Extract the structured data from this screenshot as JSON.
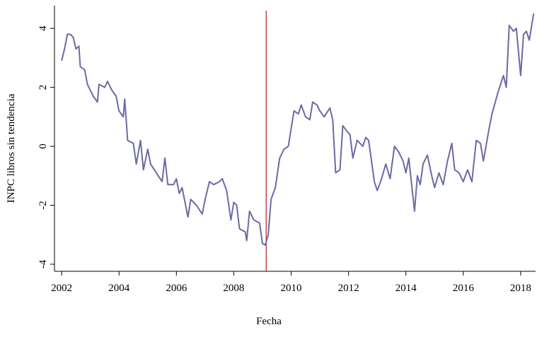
{
  "chart_data": {
    "type": "line",
    "xlabel": "Fecha",
    "ylabel": "INPC libros sin tendencia",
    "color": "#6b6aa6",
    "vline_x": 2009.13,
    "vline_color": "#b22222",
    "xlim": [
      2001.75,
      2018.52
    ],
    "ylim": [
      -4.24,
      4.77
    ],
    "xticks": [
      2002,
      2004,
      2006,
      2008,
      2010,
      2012,
      2014,
      2016,
      2018
    ],
    "yticks": [
      -4,
      -2,
      0,
      2,
      4
    ],
    "x": [
      2002.0,
      2002.1,
      2002.2,
      2002.3,
      2002.4,
      2002.5,
      2002.6,
      2002.65,
      2002.8,
      2002.9,
      2003.0,
      2003.1,
      2003.25,
      2003.3,
      2003.5,
      2003.6,
      2003.75,
      2003.9,
      2004.0,
      2004.15,
      2004.2,
      2004.3,
      2004.5,
      2004.6,
      2004.75,
      2004.85,
      2005.0,
      2005.1,
      2005.3,
      2005.5,
      2005.6,
      2005.7,
      2005.9,
      2006.0,
      2006.1,
      2006.2,
      2006.4,
      2006.5,
      2006.7,
      2006.9,
      2007.0,
      2007.15,
      2007.3,
      2007.5,
      2007.6,
      2007.75,
      2007.9,
      2008.0,
      2008.1,
      2008.2,
      2008.4,
      2008.45,
      2008.55,
      2008.7,
      2008.9,
      2009.0,
      2009.1,
      2009.2,
      2009.3,
      2009.45,
      2009.6,
      2009.75,
      2009.9,
      2010.0,
      2010.1,
      2010.25,
      2010.35,
      2010.5,
      2010.65,
      2010.75,
      2010.9,
      2011.0,
      2011.15,
      2011.35,
      2011.45,
      2011.55,
      2011.7,
      2011.8,
      2011.95,
      2012.05,
      2012.15,
      2012.3,
      2012.5,
      2012.6,
      2012.7,
      2012.8,
      2012.9,
      2013.0,
      2013.15,
      2013.3,
      2013.45,
      2013.6,
      2013.75,
      2013.9,
      2014.0,
      2014.1,
      2014.3,
      2014.4,
      2014.5,
      2014.6,
      2014.75,
      2014.9,
      2015.0,
      2015.15,
      2015.3,
      2015.45,
      2015.6,
      2015.7,
      2015.85,
      2016.0,
      2016.15,
      2016.3,
      2016.45,
      2016.6,
      2016.7,
      2016.9,
      2017.0,
      2017.2,
      2017.4,
      2017.5,
      2017.6,
      2017.75,
      2017.85,
      2018.0,
      2018.1,
      2018.2,
      2018.3,
      2018.45
    ],
    "values": [
      2.9,
      3.3,
      3.8,
      3.8,
      3.7,
      3.3,
      3.4,
      2.7,
      2.6,
      2.1,
      1.9,
      1.7,
      1.5,
      2.1,
      2.0,
      2.2,
      1.9,
      1.7,
      1.2,
      1.0,
      1.6,
      0.2,
      0.1,
      -0.6,
      0.2,
      -0.8,
      -0.1,
      -0.6,
      -0.9,
      -1.2,
      -0.4,
      -1.3,
      -1.3,
      -1.1,
      -1.6,
      -1.4,
      -2.4,
      -1.8,
      -2.0,
      -2.3,
      -1.8,
      -1.2,
      -1.3,
      -1.2,
      -1.1,
      -1.5,
      -2.5,
      -1.9,
      -2.0,
      -2.8,
      -2.9,
      -3.2,
      -2.2,
      -2.5,
      -2.6,
      -3.3,
      -3.35,
      -3.0,
      -1.8,
      -1.4,
      -0.4,
      -0.1,
      0.0,
      0.6,
      1.2,
      1.1,
      1.4,
      1.0,
      0.9,
      1.5,
      1.4,
      1.2,
      1.0,
      1.3,
      0.9,
      -0.9,
      -0.8,
      0.7,
      0.5,
      0.4,
      -0.4,
      0.2,
      0.0,
      0.3,
      0.2,
      -0.5,
      -1.2,
      -1.5,
      -1.1,
      -0.6,
      -1.1,
      0.0,
      -0.2,
      -0.5,
      -0.9,
      -0.4,
      -2.2,
      -1.0,
      -1.3,
      -0.6,
      -0.3,
      -1.0,
      -1.4,
      -0.9,
      -1.3,
      -0.5,
      0.1,
      -0.8,
      -0.9,
      -1.2,
      -0.8,
      -1.2,
      0.2,
      0.1,
      -0.5,
      0.6,
      1.1,
      1.8,
      2.4,
      2.0,
      4.1,
      3.9,
      4.0,
      2.4,
      3.8,
      3.9,
      3.6,
      4.5
    ]
  }
}
